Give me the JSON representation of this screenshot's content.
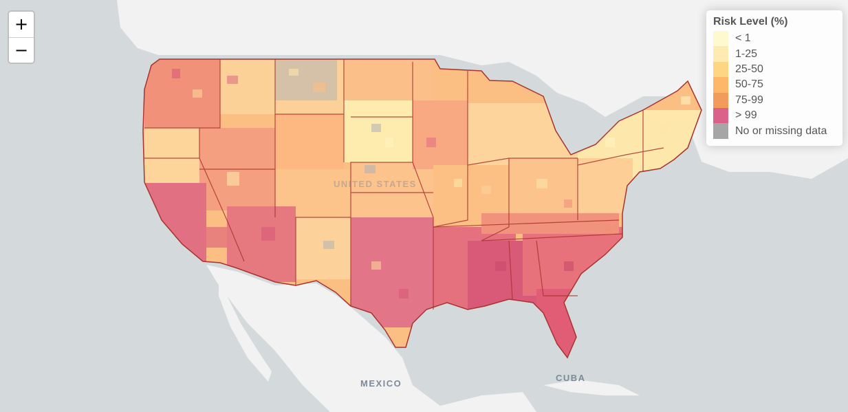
{
  "zoom": {
    "in_label": "+",
    "out_label": "−"
  },
  "legend": {
    "title": "Risk Level (%)",
    "items": [
      {
        "label": "< 1",
        "color": "#fff7bc"
      },
      {
        "label": "1-25",
        "color": "#fee391"
      },
      {
        "label": "25-50",
        "color": "#fec44f"
      },
      {
        "label": "50-75",
        "color": "#fe9929"
      },
      {
        "label": "75-99",
        "color": "#ec7014"
      },
      {
        "label": "> 99",
        "color": "#cc1e5a"
      },
      {
        "label": "No or missing data",
        "color": "#808080"
      }
    ]
  },
  "map": {
    "country_labels": [
      "UNITED STATES",
      "MEXICO",
      "CUBA"
    ],
    "colors": {
      "ocean": "#d4dadc",
      "land": "#f2f2f2",
      "border": "#a8322d"
    }
  }
}
